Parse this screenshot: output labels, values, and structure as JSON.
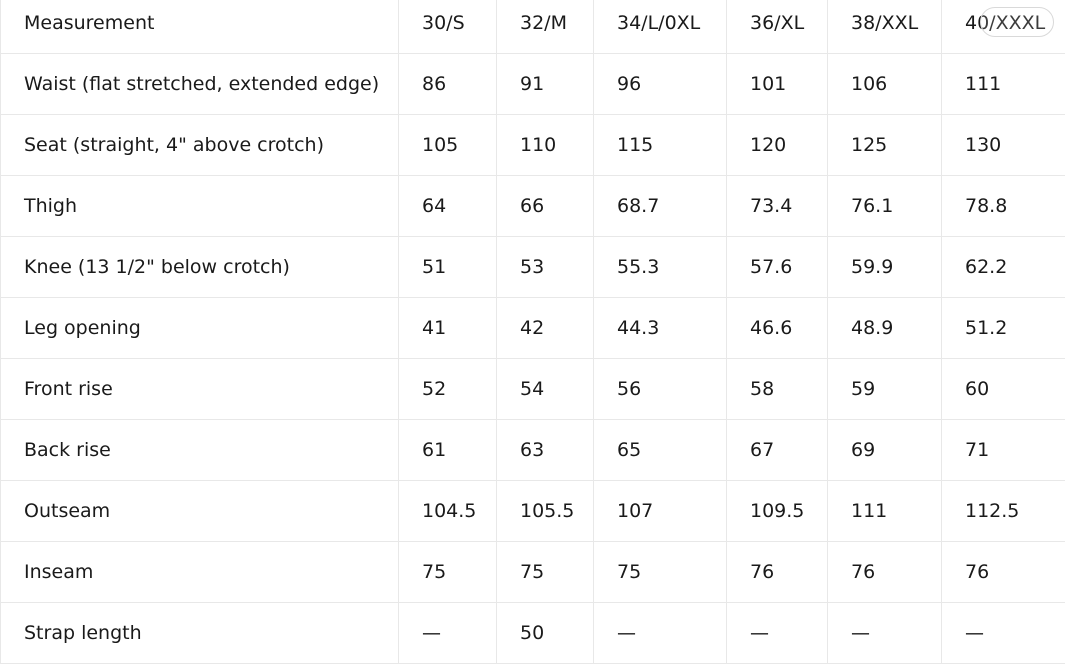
{
  "table": {
    "headers": [
      "Measurement",
      "30/S",
      "32/M",
      "34/L/0XL",
      "36/XL",
      "38/XXL",
      "40/XXXL"
    ],
    "rows": [
      [
        "Waist (flat stretched, extended edge)",
        "86",
        "91",
        "96",
        "101",
        "106",
        "111"
      ],
      [
        "Seat (straight, 4\" above crotch)",
        "105",
        "110",
        "115",
        "120",
        "125",
        "130"
      ],
      [
        "Thigh",
        "64",
        "66",
        "68.7",
        "73.4",
        "76.1",
        "78.8"
      ],
      [
        "Knee (13 1/2\" below crotch)",
        "51",
        "53",
        "55.3",
        "57.6",
        "59.9",
        "62.2"
      ],
      [
        "Leg opening",
        "41",
        "42",
        "44.3",
        "46.6",
        "48.9",
        "51.2"
      ],
      [
        "Front rise",
        "52",
        "54",
        "56",
        "58",
        "59",
        "60"
      ],
      [
        "Back rise",
        "61",
        "63",
        "65",
        "67",
        "69",
        "71"
      ],
      [
        "Outseam",
        "104.5",
        "105.5",
        "107",
        "109.5",
        "111",
        "112.5"
      ],
      [
        "Inseam",
        "75",
        "75",
        "75",
        "76",
        "76",
        "76"
      ],
      [
        "Strap length",
        "—",
        "50",
        "—",
        "—",
        "—",
        "—"
      ]
    ]
  },
  "colors": {
    "text": "#1a1a1a",
    "grid": "#e8e8e8",
    "background": "#ffffff"
  }
}
